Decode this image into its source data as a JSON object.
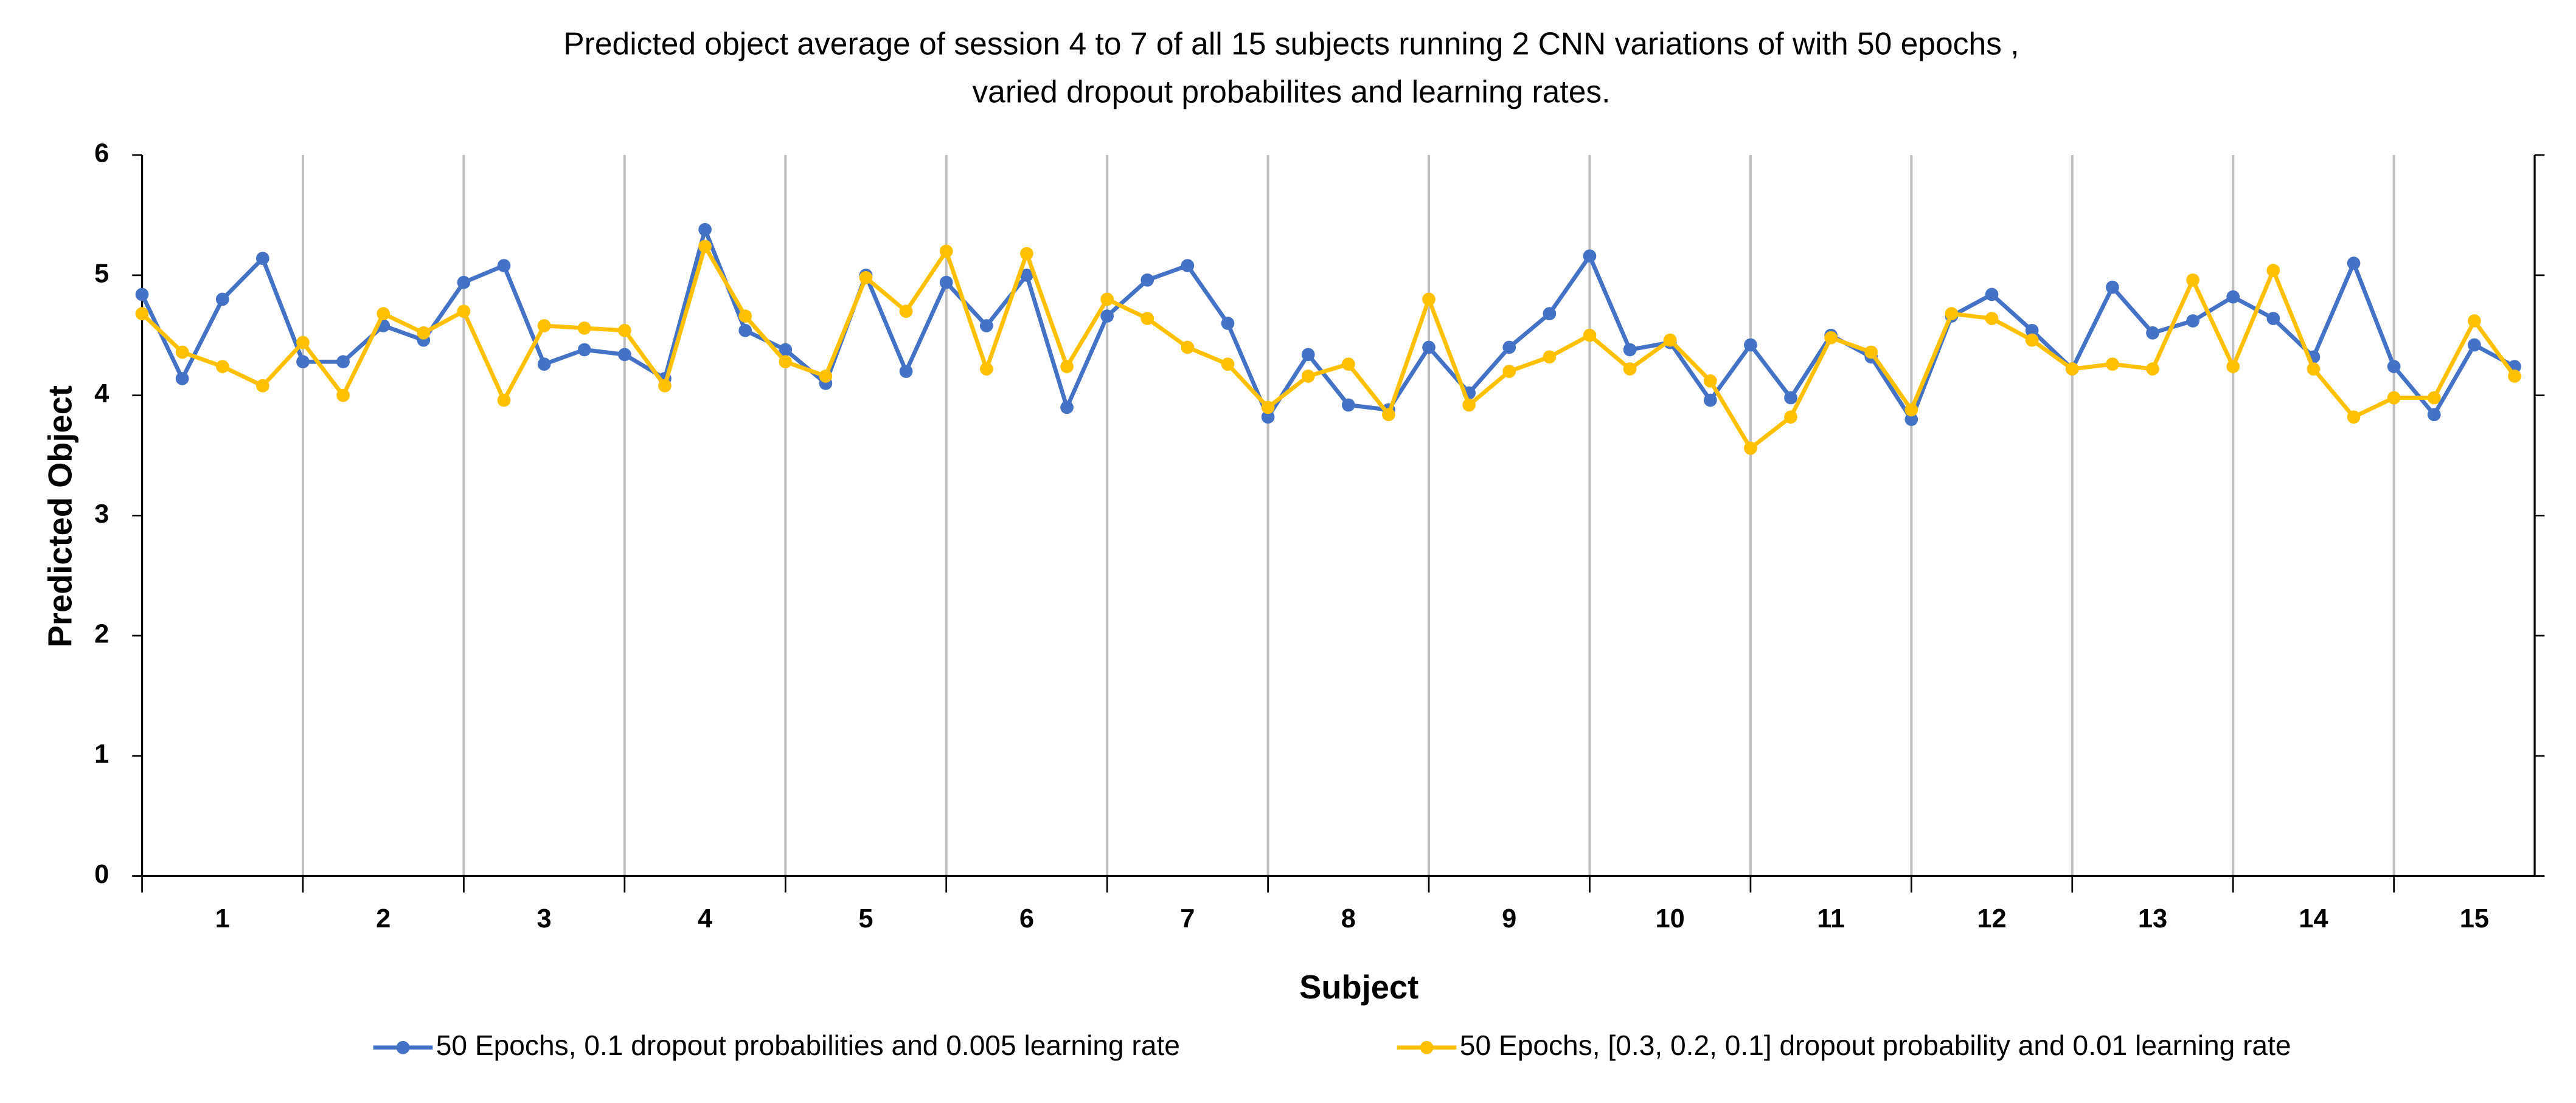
{
  "chart_data": {
    "type": "line",
    "title": [
      "Predicted object average of session 4 to 7 of all 15 subjects running 2 CNN variations of with 50 epochs ,",
      "varied dropout probabilites and learning rates."
    ],
    "x_label": "Subject",
    "y_label": "Predicted Object",
    "categories": [
      "1",
      "2",
      "3",
      "4",
      "5",
      "6",
      "7",
      "8",
      "9",
      "10",
      "11",
      "12",
      "13",
      "14",
      "15"
    ],
    "ylim": [
      0,
      6
    ],
    "yticks": [
      0,
      1,
      2,
      3,
      4,
      5,
      6
    ],
    "grid": "x-groups",
    "legend": "bottom",
    "series": [
      {
        "name": "50 Epochs, 0.1 dropout probabilities and 0.005 learning rate",
        "color": "#4472c4",
        "values": [
          [
            4.84,
            4.14,
            4.8,
            5.14
          ],
          [
            4.28,
            4.28,
            4.58,
            4.46
          ],
          [
            4.94,
            5.08,
            4.26,
            4.38
          ],
          [
            4.34,
            4.14,
            5.38,
            4.54
          ],
          [
            4.38,
            4.1,
            5.0,
            4.2
          ],
          [
            4.94,
            4.58,
            5.0,
            3.9
          ],
          [
            4.66,
            4.96,
            5.08,
            4.6
          ],
          [
            3.82,
            4.34,
            3.92,
            3.88
          ],
          [
            4.4,
            4.02,
            4.4,
            4.68
          ],
          [
            5.16,
            4.38,
            4.44,
            3.96
          ],
          [
            4.42,
            3.98,
            4.5,
            4.32
          ],
          [
            3.8,
            4.66,
            4.84,
            4.54
          ],
          [
            4.22,
            4.9,
            4.52,
            4.62
          ],
          [
            4.82,
            4.64,
            4.32,
            5.1
          ],
          [
            4.24,
            3.84,
            4.42,
            4.24
          ]
        ]
      },
      {
        "name": "50 Epochs, [0.3, 0.2, 0.1] dropout probability and 0.01 learning rate",
        "color": "#ffc000",
        "values": [
          [
            4.68,
            4.36,
            4.24,
            4.08
          ],
          [
            4.44,
            4.0,
            4.68,
            4.52
          ],
          [
            4.7,
            3.96,
            4.58,
            4.56
          ],
          [
            4.54,
            4.08,
            5.24,
            4.66
          ],
          [
            4.28,
            4.16,
            4.98,
            4.7
          ],
          [
            5.2,
            4.22,
            5.18,
            4.24
          ],
          [
            4.8,
            4.64,
            4.4,
            4.26
          ],
          [
            3.9,
            4.16,
            4.26,
            3.84
          ],
          [
            4.8,
            3.92,
            4.2,
            4.32
          ],
          [
            4.5,
            4.22,
            4.46,
            4.12
          ],
          [
            3.56,
            3.82,
            4.48,
            4.36
          ],
          [
            3.88,
            4.68,
            4.64,
            4.46
          ],
          [
            4.22,
            4.26,
            4.22,
            4.96
          ],
          [
            4.24,
            5.04,
            4.22,
            3.82
          ],
          [
            3.98,
            3.98,
            4.62,
            4.16
          ]
        ]
      }
    ]
  }
}
